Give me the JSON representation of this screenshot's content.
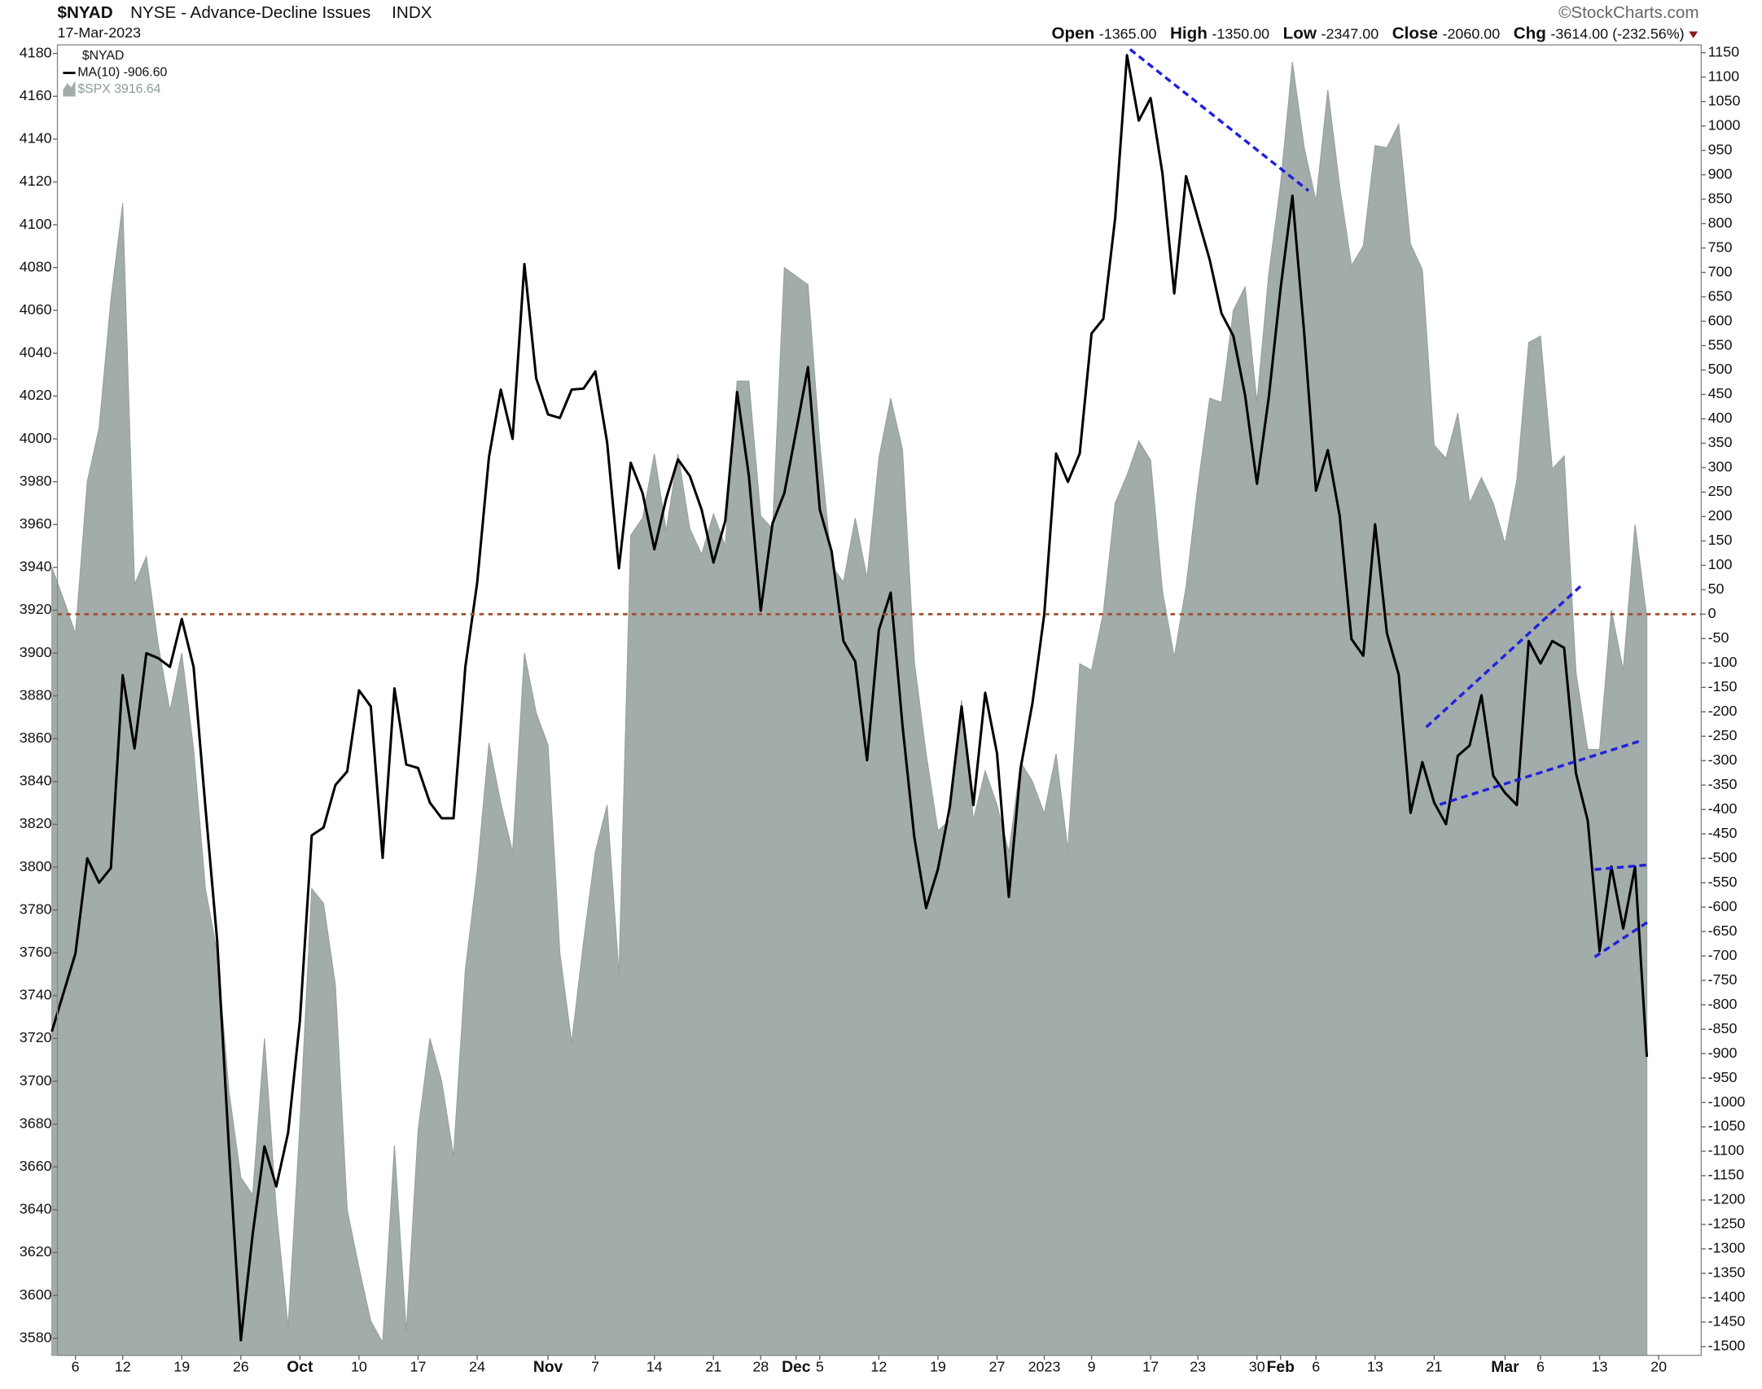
{
  "chart_data": {
    "type": "area-line",
    "header": {
      "symbol": "$NYAD",
      "name": "NYSE - Advance-Decline Issues",
      "exchange": "INDX",
      "date": "17-Mar-2023",
      "source": "©StockCharts.com",
      "stats": [
        {
          "label": "Open",
          "value": "-1365.00"
        },
        {
          "label": "High",
          "value": "-1350.00"
        },
        {
          "label": "Low",
          "value": "-2347.00"
        },
        {
          "label": "Close",
          "value": "-2060.00"
        },
        {
          "label": "Chg",
          "value": "-3614.00 (-232.56%)"
        }
      ]
    },
    "legend_title": "$NYAD",
    "legend_values": [
      "3916.64",
      "-906.60"
    ],
    "categories": [
      null,
      null,
      "6",
      null,
      null,
      null,
      "12",
      null,
      null,
      null,
      null,
      "19",
      null,
      null,
      null,
      null,
      "26",
      null,
      null,
      null,
      null,
      "Oct",
      null,
      null,
      null,
      null,
      "10",
      null,
      null,
      null,
      null,
      "17",
      null,
      null,
      null,
      null,
      "24",
      null,
      null,
      null,
      null,
      null,
      "Nov",
      null,
      null,
      null,
      "7",
      null,
      null,
      null,
      null,
      "14",
      null,
      null,
      null,
      null,
      "21",
      null,
      null,
      null,
      "28",
      null,
      null,
      "Dec",
      null,
      "5",
      null,
      null,
      null,
      null,
      "12",
      null,
      null,
      null,
      null,
      "19",
      null,
      null,
      null,
      null,
      "27",
      null,
      null,
      null,
      "2023",
      null,
      null,
      null,
      "9",
      null,
      null,
      null,
      null,
      "17",
      null,
      null,
      null,
      "23",
      null,
      null,
      null,
      null,
      "30",
      null,
      "Feb",
      null,
      null,
      "6",
      null,
      null,
      null,
      null,
      "13",
      null,
      null,
      null,
      null,
      "21",
      null,
      null,
      null,
      null,
      null,
      "Mar",
      null,
      null,
      "6",
      null,
      null,
      null,
      null,
      "13",
      null,
      null,
      null,
      null,
      "20"
    ],
    "series": [
      {
        "name": "$SPX",
        "kind": "area",
        "axis": "y",
        "color": "#a2acab",
        "values": [
          3940,
          3925,
          3909,
          3980,
          4005,
          4065,
          4110,
          3932,
          3945,
          3904,
          3873,
          3900,
          3855,
          3790,
          3760,
          3695,
          3655,
          3647,
          3720,
          3640,
          3585,
          3680,
          3790,
          3783,
          3745,
          3640,
          3613,
          3588,
          3578,
          3670,
          3583,
          3677,
          3720,
          3700,
          3665,
          3752,
          3798,
          3858,
          3830,
          3807,
          3900,
          3872,
          3857,
          3760,
          3718,
          3765,
          3807,
          3829,
          3750,
          3955,
          3963,
          3993,
          3957,
          3993,
          3958,
          3946,
          3965,
          3950,
          4027,
          4027,
          3964,
          3958,
          4080,
          4076,
          4072,
          3998,
          3941,
          3933,
          3963,
          3935,
          3991,
          4019,
          3995,
          3896,
          3853,
          3817,
          3822,
          3878,
          3822,
          3845,
          3829,
          3807,
          3849,
          3840,
          3825,
          3853,
          3808,
          3895,
          3892,
          3919,
          3970,
          3983,
          3999,
          3990,
          3929,
          3898,
          3931,
          3978,
          4019,
          4017,
          4060,
          4071,
          4017,
          4077,
          4119,
          4176,
          4136,
          4111,
          4163,
          4118,
          4081,
          4090,
          4137,
          4136,
          4147,
          4091,
          4079,
          3997,
          3991,
          4012,
          3970,
          3982,
          3970,
          3951,
          3981,
          4045,
          4048,
          3986,
          3992,
          3891,
          3855,
          3855,
          3920,
          3892,
          3960,
          3916.64,
          null
        ]
      },
      {
        "name": "MA(10)",
        "kind": "line",
        "axis": "y2",
        "color": "#000000",
        "values": [
          -855,
          -775,
          -695,
          -500,
          -550,
          -520,
          -125,
          -275,
          -80,
          -90,
          -108,
          -10,
          -108,
          -395,
          -670,
          -1097,
          -1487,
          -1270,
          -1090,
          -1172,
          -1062,
          -832,
          -453,
          -437,
          -350,
          -322,
          -156,
          -189,
          -499,
          -152,
          -308,
          -315,
          -386,
          -418,
          -418,
          -108,
          64,
          322,
          460,
          359,
          717,
          483,
          409,
          402,
          460,
          462,
          497,
          352,
          94,
          310,
          248,
          133,
          237,
          317,
          283,
          214,
          106,
          191,
          455,
          283,
          7,
          186,
          248,
          375,
          506,
          214,
          129,
          -55,
          -97,
          -299,
          -32,
          44,
          -228,
          -457,
          -602,
          -522,
          -395,
          -189,
          -391,
          -161,
          -285,
          -579,
          -315,
          -182,
          0,
          329,
          271,
          329,
          575,
          605,
          811,
          1145,
          1011,
          1057,
          903,
          657,
          897,
          811,
          726,
          616,
          570,
          448,
          267,
          444,
          667,
          857,
          575,
          253,
          336,
          202,
          -51,
          -85,
          184,
          -39,
          -124,
          -407,
          -303,
          -386,
          -430,
          -290,
          -269,
          -166,
          -331,
          -366,
          -391,
          -55,
          -101,
          -55,
          -69,
          -326,
          -423,
          -690,
          -517,
          -644,
          -517,
          -906.6,
          null
        ]
      }
    ],
    "ylim": [
      3572,
      4184
    ],
    "yticks": [
      3580,
      3600,
      3620,
      3640,
      3660,
      3680,
      3700,
      3720,
      3740,
      3760,
      3780,
      3800,
      3820,
      3840,
      3860,
      3880,
      3900,
      3920,
      3940,
      3960,
      3980,
      4000,
      4020,
      4040,
      4060,
      4080,
      4100,
      4120,
      4140,
      4160,
      4180
    ],
    "y2lim": [
      -1518,
      1166
    ],
    "y2ticks": [
      -1500,
      -1450,
      -1400,
      -1350,
      -1300,
      -1250,
      -1200,
      -1150,
      -1100,
      -1050,
      -1000,
      -950,
      -900,
      -850,
      -800,
      -750,
      -700,
      -650,
      -600,
      -550,
      -500,
      -450,
      -400,
      -350,
      -300,
      -250,
      -200,
      -150,
      -100,
      -50,
      0,
      50,
      100,
      150,
      200,
      250,
      300,
      350,
      400,
      450,
      500,
      550,
      600,
      650,
      700,
      750,
      800,
      850,
      900,
      950,
      1000,
      1050,
      1100,
      1150
    ],
    "y2_reference_line": 0,
    "reference_line_color": "#a0522d",
    "grid": false
  }
}
